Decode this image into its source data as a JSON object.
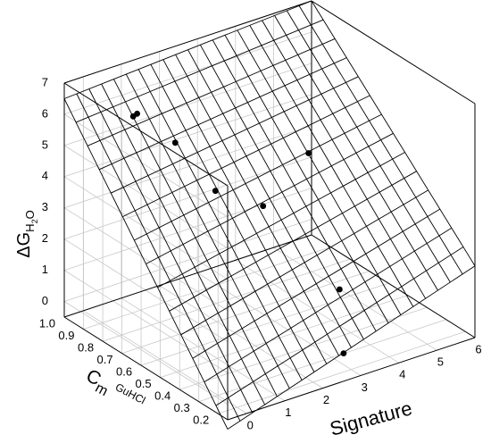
{
  "chart_data": {
    "type": "surface3d-scatter",
    "title": "",
    "axes": {
      "x": {
        "label": "Signature",
        "range": [
          -0.5,
          6
        ],
        "ticks": [
          "0",
          "1",
          "2",
          "3",
          "4",
          "5",
          "6"
        ]
      },
      "y": {
        "label_main": "C",
        "label_sub_m": "m",
        "label_sub": "GuHCl",
        "range": [
          0.15,
          1.0
        ],
        "ticks": [
          "0.2",
          "0.3",
          "0.4",
          "0.5",
          "0.6",
          "0.7",
          "0.8",
          "0.9",
          "1.0"
        ]
      },
      "z": {
        "label_main": "ΔG",
        "label_sub": "H",
        "label_sub2": "2",
        "label_sub3": "O",
        "range": [
          -0.5,
          7
        ],
        "ticks": [
          "0",
          "1",
          "2",
          "3",
          "4",
          "5",
          "6",
          "7"
        ]
      }
    },
    "surface": {
      "x_range": [
        -0.5,
        6
      ],
      "y_range": [
        0.15,
        1.0
      ],
      "z_at_corners": {
        "x0_y0": -0.8,
        "x1_y0": 1.8,
        "x0_y1": 6.5,
        "x1_y1": 7.0
      }
    },
    "points": [
      {
        "signature": 0.0,
        "cm": 0.72,
        "dg": 6.9
      },
      {
        "signature": 0.2,
        "cm": 0.78,
        "dg": 6.5
      },
      {
        "signature": 0.8,
        "cm": 0.68,
        "dg": 5.8
      },
      {
        "signature": 1.2,
        "cm": 0.55,
        "dg": 4.6
      },
      {
        "signature": 2.2,
        "cm": 0.5,
        "dg": 3.9
      },
      {
        "signature": 4.0,
        "cm": 0.62,
        "dg": 4.4
      },
      {
        "signature": 3.2,
        "cm": 0.3,
        "dg": 1.6
      },
      {
        "signature": 2.8,
        "cm": 0.2,
        "dg": 0.1
      }
    ],
    "grid": true,
    "legend": "none"
  }
}
